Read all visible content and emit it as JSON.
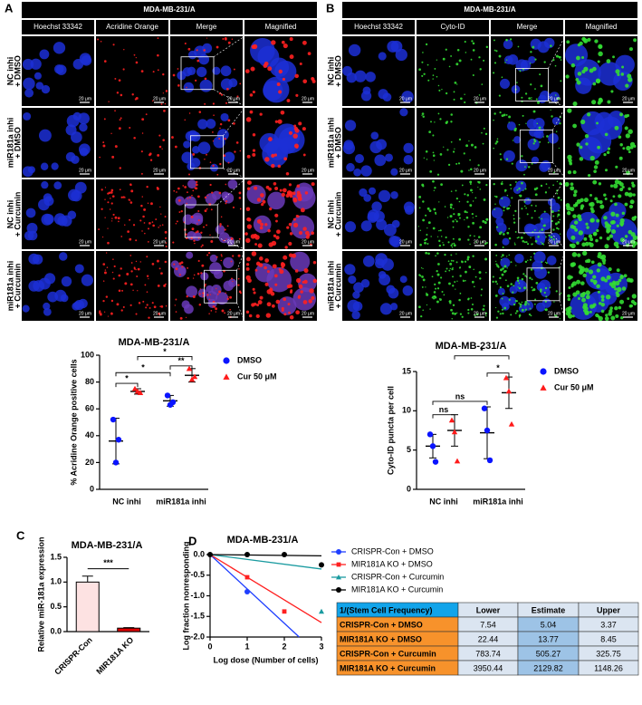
{
  "panel_labels": [
    "A",
    "B",
    "C",
    "D"
  ],
  "scale_bar": "20 μm",
  "panel_a": {
    "title": "MDA-MB-231/A",
    "columns": [
      "Hoechst 33342",
      "Acridine Orange",
      "Merge",
      "Magnified"
    ],
    "rows": [
      [
        "NC inhi",
        "+ DMSO"
      ],
      [
        "miR181a inhi",
        "+ DMSO"
      ],
      [
        "NC inhi",
        "+ Curcumin"
      ],
      [
        "miR181a inhi",
        "+ Curcumin"
      ]
    ]
  },
  "panel_b": {
    "title": "MDA-MB-231/A",
    "columns": [
      "Hoechst 33342",
      "Cyto-ID",
      "Merge",
      "Magnified"
    ],
    "rows": [
      [
        "NC inhi",
        "+ DMSO"
      ],
      [
        "miR181a inhi",
        "+ DMSO"
      ],
      [
        "NC inhi",
        "+ Curcumin"
      ],
      [
        "miR181a inhi",
        "+ Curcumin"
      ]
    ]
  },
  "chart_data": [
    {
      "type": "dot",
      "title": "MDA-MB-231/A",
      "ylabel": "% Acridine Orange positive cells",
      "categories": [
        "NC inhi",
        "miR181a inhi"
      ],
      "series": [
        {
          "name": "DMSO",
          "color": "#0a14ff",
          "marker": "circle",
          "values": [
            [
              52,
              20,
              37
            ],
            [
              70,
              63,
              65
            ]
          ],
          "mean": [
            36,
            66
          ],
          "sd": [
            17,
            4
          ]
        },
        {
          "name": "Cur 50 μM",
          "color": "#ff1a1a",
          "marker": "triangle",
          "values": [
            [
              75,
              73,
              72
            ],
            [
              90,
              82,
              84
            ]
          ],
          "mean": [
            73,
            85
          ],
          "sd": [
            2,
            5
          ]
        }
      ],
      "ylim": [
        0,
        100
      ],
      "yticks": [
        0,
        20,
        40,
        60,
        80,
        100
      ],
      "annotations": [
        {
          "text": "*",
          "between": [
            [
              0,
              0
            ],
            [
              1,
              0
            ]
          ],
          "y": 79
        },
        {
          "text": "*",
          "between": [
            [
              0,
              0
            ],
            [
              0,
              1
            ]
          ],
          "y": 87
        },
        {
          "text": "**",
          "between": [
            [
              0,
              1
            ],
            [
              1,
              1
            ]
          ],
          "y": 92
        },
        {
          "text": "*",
          "between": [
            [
              1,
              0
            ],
            [
              1,
              1
            ]
          ],
          "y": 99
        }
      ]
    },
    {
      "type": "dot",
      "title": "MDA-MB-231/A",
      "ylabel": "Cyto-ID puncta per cell",
      "categories": [
        "NC inhi",
        "miR181a inhi"
      ],
      "series": [
        {
          "name": "DMSO",
          "color": "#0a14ff",
          "marker": "circle",
          "values": [
            [
              7,
              5.5,
              3.5
            ],
            [
              10.3,
              7.5,
              3.7
            ]
          ],
          "mean": [
            5.5,
            7.2
          ],
          "sd": [
            1.5,
            3.3
          ]
        },
        {
          "name": "Cur 50 μM",
          "color": "#ff1a1a",
          "marker": "triangle",
          "values": [
            [
              8.8,
              7.3,
              3.6
            ],
            [
              14.2,
              12.5,
              8.3
            ]
          ],
          "mean": [
            7.5,
            12.3
          ],
          "sd": [
            2,
            2
          ]
        }
      ],
      "ylim": [
        0,
        15
      ],
      "yticks": [
        0,
        5,
        10,
        15
      ],
      "annotations": [
        {
          "text": "ns",
          "between": [
            [
              0,
              0
            ],
            [
              1,
              0
            ]
          ],
          "y": 9.5
        },
        {
          "text": "ns",
          "between": [
            [
              0,
              0
            ],
            [
              0,
              1
            ]
          ],
          "y": 11.2
        },
        {
          "text": "*",
          "between": [
            [
              0,
              1
            ],
            [
              1,
              1
            ]
          ],
          "y": 14.8
        },
        {
          "text": "*",
          "between": [
            [
              1,
              0
            ],
            [
              1,
              1
            ]
          ],
          "y": 17
        }
      ]
    },
    {
      "type": "bar",
      "title": "MDA-MB-231/A",
      "ylabel": "Relative miR-181a expression",
      "categories": [
        "CRISPR-Con",
        "MIR181A KO"
      ],
      "values": [
        1.0,
        0.07
      ],
      "errors": [
        0.12,
        0.01
      ],
      "colors": [
        "#fde2e2",
        "#e00000"
      ],
      "ylim": [
        0,
        1.5
      ],
      "yticks": [
        {
          "value": 0,
          "label": "0.0"
        },
        0.5,
        {
          "value": 1,
          "label": "1.0"
        },
        1.5
      ],
      "annotations": [
        {
          "text": "***",
          "between": [
            0,
            1
          ],
          "y": 1.27
        }
      ]
    },
    {
      "type": "line",
      "title": "MDA-MB-231/A",
      "xlabel": "Log dose (Number of cells)",
      "ylabel": "Log fraction nonresponding",
      "x": [
        0,
        1,
        2,
        3
      ],
      "xlim": [
        0,
        3
      ],
      "xticks": [
        0,
        1,
        2,
        3
      ],
      "ylim": [
        -2,
        0
      ],
      "yticks": [
        {
          "value": 0,
          "label": "0.0"
        },
        -0.5,
        {
          "value": -1,
          "label": "-1.0"
        },
        -1.5,
        {
          "value": -2,
          "label": "-2.0"
        }
      ],
      "series": [
        {
          "name": "CRISPR-Con + DMSO",
          "color": "#1f3fff",
          "marker": "circle",
          "values": [
            null,
            -0.9,
            null,
            null
          ],
          "fit": {
            "x": [
              0,
              2.4
            ],
            "values": [
              0,
              -2
            ]
          }
        },
        {
          "name": "MIR181A KO + DMSO",
          "color": "#ff1f1f",
          "marker": "square",
          "values": [
            null,
            -0.55,
            -1.38,
            null
          ],
          "fit": {
            "x": [
              0,
              3
            ],
            "values": [
              0,
              -1.65
            ]
          }
        },
        {
          "name": "CRISPR-Con + Curcumin",
          "color": "#1a9ba0",
          "marker": "triangle",
          "values": [
            null,
            null,
            null,
            -1.38
          ],
          "fit": {
            "x": [
              0,
              3
            ],
            "values": [
              0,
              -0.35
            ]
          }
        },
        {
          "name": "MIR181A KO + Curcumin",
          "color": "#000000",
          "marker": "circle",
          "values": [
            0,
            0,
            0,
            -0.25
          ],
          "fit": {
            "x": [
              0,
              3
            ],
            "values": [
              0,
              -0.03
            ]
          }
        }
      ]
    }
  ],
  "table": {
    "header": [
      "1/(Stem Cell Frequency)",
      "Lower",
      "Estimate",
      "Upper"
    ],
    "rows": [
      [
        "CRISPR-Con + DMSO",
        7.54,
        5.04,
        3.37
      ],
      [
        "MIR181A KO + DMSO",
        22.44,
        13.77,
        8.45
      ],
      [
        "CRISPR-Con + Curcumin",
        783.74,
        505.27,
        325.75
      ],
      [
        "MIR181A KO + Curcumin",
        3950.44,
        2129.82,
        1148.26
      ]
    ]
  }
}
